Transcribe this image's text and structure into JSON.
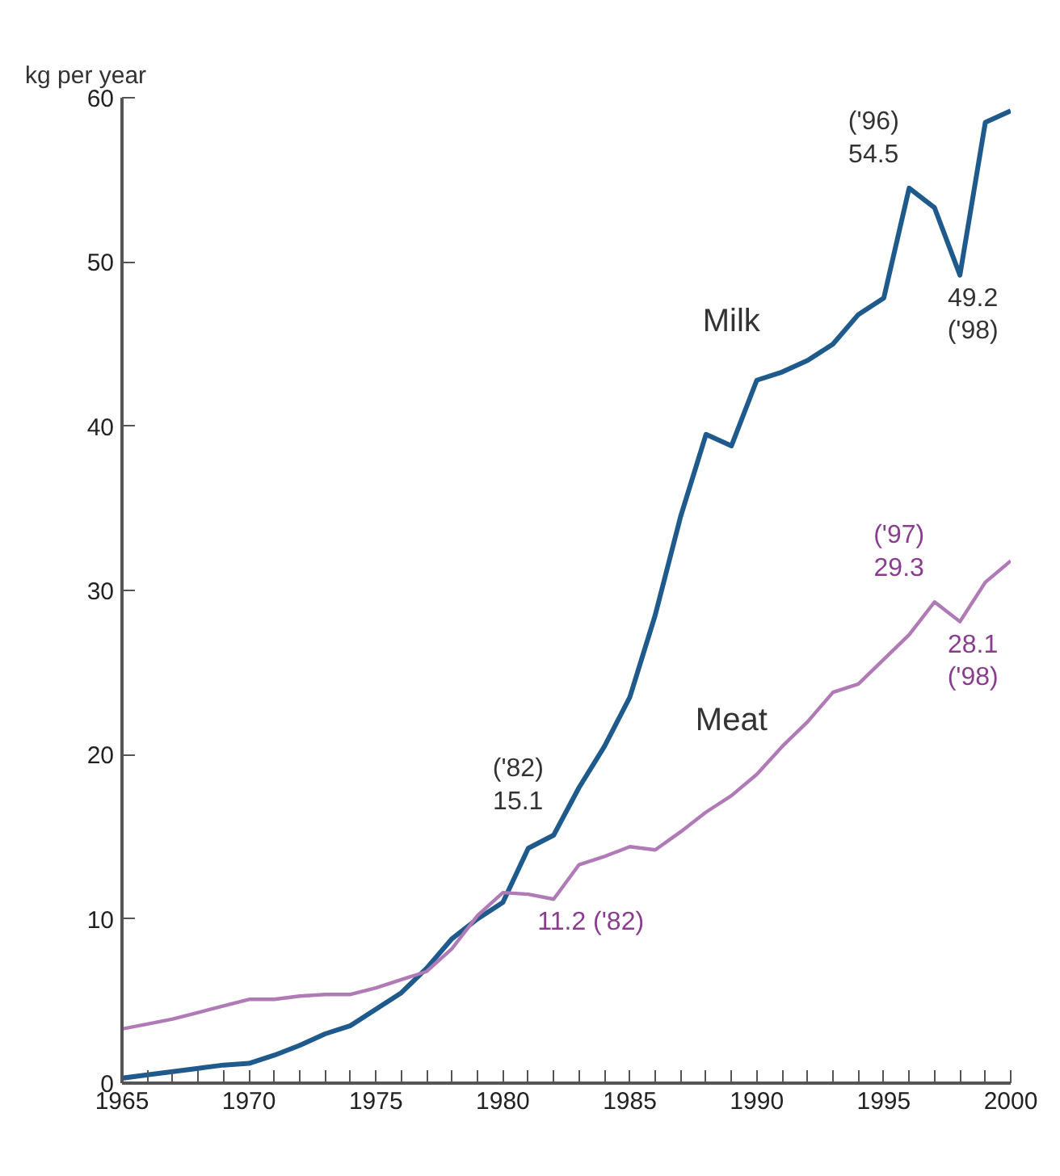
{
  "chart_data": {
    "type": "line",
    "ylabel": "kg per year",
    "x": [
      1965,
      1966,
      1967,
      1968,
      1969,
      1970,
      1971,
      1972,
      1973,
      1974,
      1975,
      1976,
      1977,
      1978,
      1979,
      1980,
      1981,
      1982,
      1983,
      1984,
      1985,
      1986,
      1987,
      1988,
      1989,
      1990,
      1991,
      1992,
      1993,
      1994,
      1995,
      1996,
      1997,
      1998,
      1999,
      2000
    ],
    "series": [
      {
        "name": "Milk",
        "color": "#1f5a8c",
        "values": [
          0.3,
          0.5,
          0.7,
          0.9,
          1.1,
          1.2,
          1.7,
          2.3,
          3.0,
          3.5,
          4.5,
          5.5,
          7.0,
          8.8,
          10.0,
          11.0,
          14.3,
          15.1,
          18.0,
          20.5,
          23.5,
          28.5,
          34.5,
          39.5,
          38.8,
          42.8,
          43.3,
          44.0,
          45.0,
          46.8,
          47.8,
          54.5,
          53.3,
          49.2,
          58.5,
          59.2
        ]
      },
      {
        "name": "Meat",
        "color": "#b07ab6",
        "values": [
          3.3,
          3.6,
          3.9,
          4.3,
          4.7,
          5.1,
          5.1,
          5.3,
          5.4,
          5.4,
          5.8,
          6.3,
          6.8,
          8.2,
          10.2,
          11.6,
          11.5,
          11.2,
          13.3,
          13.8,
          14.4,
          14.2,
          15.3,
          16.5,
          17.5,
          18.8,
          20.5,
          22.0,
          23.8,
          24.3,
          25.8,
          27.3,
          29.3,
          28.1,
          30.5,
          31.8
        ]
      }
    ],
    "xlim": [
      1965,
      2000
    ],
    "xticks": [
      1965,
      1970,
      1975,
      1980,
      1985,
      1990,
      1995,
      2000
    ],
    "ylim": [
      0,
      60
    ],
    "yticks": [
      0,
      10,
      20,
      30,
      40,
      50,
      60
    ],
    "grid": false,
    "marker": "none",
    "line_style": "solid",
    "annotations": [
      {
        "text": "('96)\n54.5",
        "x": 1996,
        "y": 54.5
      },
      {
        "text": "49.2\n('98)",
        "x": 1998,
        "y": 49.2
      },
      {
        "text": "('82)\n15.1",
        "x": 1982,
        "y": 15.1
      },
      {
        "text": "('97)\n29.3",
        "x": 1997,
        "y": 29.3
      },
      {
        "text": "28.1\n('98)",
        "x": 1998,
        "y": 28.1
      },
      {
        "text": "11.2 ('82)",
        "x": 1982,
        "y": 11.2
      }
    ]
  }
}
